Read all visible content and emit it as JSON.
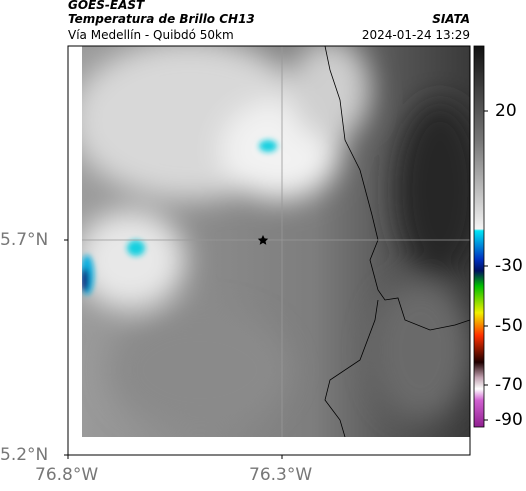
{
  "header": {
    "source": "GOES-EAST",
    "product": "Temperatura de Brillo CH13",
    "route": "Vía Medellín - Quibdó 50km",
    "agency": "SIATA",
    "datetime": "2024-01-24 13:29"
  },
  "map": {
    "lat_labels": [
      "5.7°N",
      "5.2°N"
    ],
    "lon_labels": [
      "76.8°W",
      "76.3°W"
    ]
  },
  "colorbar": {
    "tick_labels": [
      "20",
      "-30",
      "-50",
      "-70",
      "-90"
    ]
  }
}
